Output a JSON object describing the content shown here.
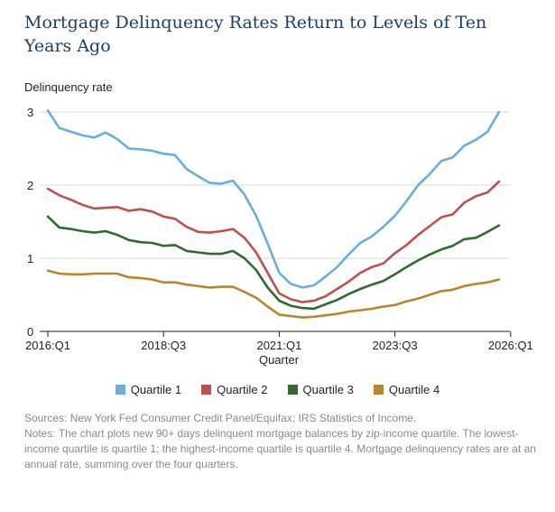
{
  "title": "Mortgage Delinquency Rates Return to Levels of Ten Years Ago",
  "sources": "Sources: New York Fed Consumer Credit Panel/Equifax; IRS Statistics of Income.",
  "notes": "Notes: The chart plots new 90+ days delinquent mortgage balances by zip-income quartile. The lowest-income quartile is quartile 1; the highest-income quartile is quartile 4. Mortgage delinquency rates are at an annual rate, summing over the four quarters.",
  "chart_data": {
    "type": "line",
    "title": "Mortgage Delinquency Rates Return to Levels of Ten Years Ago",
    "ylabel": "Delinquency rate",
    "xlabel": "Quarter",
    "ylim": [
      0,
      3
    ],
    "yticks": [
      0,
      1,
      2,
      3
    ],
    "grid": true,
    "legend_position": "bottom",
    "xticks": [
      {
        "index": 0,
        "label": "2016:Q1"
      },
      {
        "index": 10,
        "label": "2018:Q3"
      },
      {
        "index": 20,
        "label": "2021:Q1"
      },
      {
        "index": 30,
        "label": "2023:Q3"
      },
      {
        "index": 40,
        "label": "2026:Q1"
      }
    ],
    "x": [
      "2016:Q1",
      "2016:Q2",
      "2016:Q3",
      "2016:Q4",
      "2017:Q1",
      "2017:Q2",
      "2017:Q3",
      "2017:Q4",
      "2018:Q1",
      "2018:Q2",
      "2018:Q3",
      "2018:Q4",
      "2019:Q1",
      "2019:Q2",
      "2019:Q3",
      "2019:Q4",
      "2020:Q1",
      "2020:Q2",
      "2020:Q3",
      "2020:Q4",
      "2021:Q1",
      "2021:Q2",
      "2021:Q3",
      "2021:Q4",
      "2022:Q1",
      "2022:Q2",
      "2022:Q3",
      "2022:Q4",
      "2023:Q1",
      "2023:Q2",
      "2023:Q3",
      "2023:Q4",
      "2024:Q1",
      "2024:Q2",
      "2024:Q3",
      "2024:Q4",
      "2025:Q1",
      "2025:Q2",
      "2025:Q3",
      "2025:Q4"
    ],
    "series": [
      {
        "name": "Quartile 1",
        "color": "#6baed6",
        "values": [
          3.02,
          2.78,
          2.73,
          2.68,
          2.65,
          2.72,
          2.63,
          2.5,
          2.49,
          2.47,
          2.43,
          2.41,
          2.22,
          2.12,
          2.03,
          2.02,
          2.06,
          1.87,
          1.58,
          1.2,
          0.8,
          0.65,
          0.6,
          0.63,
          0.75,
          0.88,
          1.05,
          1.21,
          1.3,
          1.43,
          1.58,
          1.78,
          2.0,
          2.15,
          2.33,
          2.38,
          2.54,
          2.62,
          2.73,
          3.0
        ]
      },
      {
        "name": "Quartile 2",
        "color": "#c0504d",
        "values": [
          1.95,
          1.86,
          1.8,
          1.73,
          1.68,
          1.69,
          1.7,
          1.65,
          1.67,
          1.64,
          1.57,
          1.54,
          1.43,
          1.36,
          1.35,
          1.37,
          1.4,
          1.28,
          1.08,
          0.8,
          0.52,
          0.44,
          0.4,
          0.42,
          0.48,
          0.58,
          0.68,
          0.8,
          0.88,
          0.93,
          1.07,
          1.18,
          1.32,
          1.44,
          1.56,
          1.6,
          1.76,
          1.85,
          1.9,
          2.05
        ]
      },
      {
        "name": "Quartile 3",
        "color": "#2f6b30",
        "values": [
          1.57,
          1.42,
          1.4,
          1.37,
          1.35,
          1.37,
          1.32,
          1.25,
          1.22,
          1.21,
          1.17,
          1.18,
          1.1,
          1.08,
          1.06,
          1.06,
          1.1,
          1.0,
          0.84,
          0.6,
          0.42,
          0.35,
          0.32,
          0.31,
          0.37,
          0.43,
          0.51,
          0.58,
          0.64,
          0.69,
          0.78,
          0.88,
          0.97,
          1.05,
          1.12,
          1.17,
          1.26,
          1.28,
          1.36,
          1.45
        ]
      },
      {
        "name": "Quartile 4",
        "color": "#b8862e",
        "values": [
          0.83,
          0.79,
          0.78,
          0.78,
          0.79,
          0.79,
          0.79,
          0.74,
          0.73,
          0.71,
          0.67,
          0.67,
          0.64,
          0.62,
          0.6,
          0.61,
          0.61,
          0.54,
          0.46,
          0.34,
          0.23,
          0.21,
          0.19,
          0.2,
          0.22,
          0.24,
          0.27,
          0.29,
          0.31,
          0.34,
          0.36,
          0.41,
          0.45,
          0.5,
          0.55,
          0.57,
          0.62,
          0.65,
          0.67,
          0.71
        ]
      }
    ]
  }
}
